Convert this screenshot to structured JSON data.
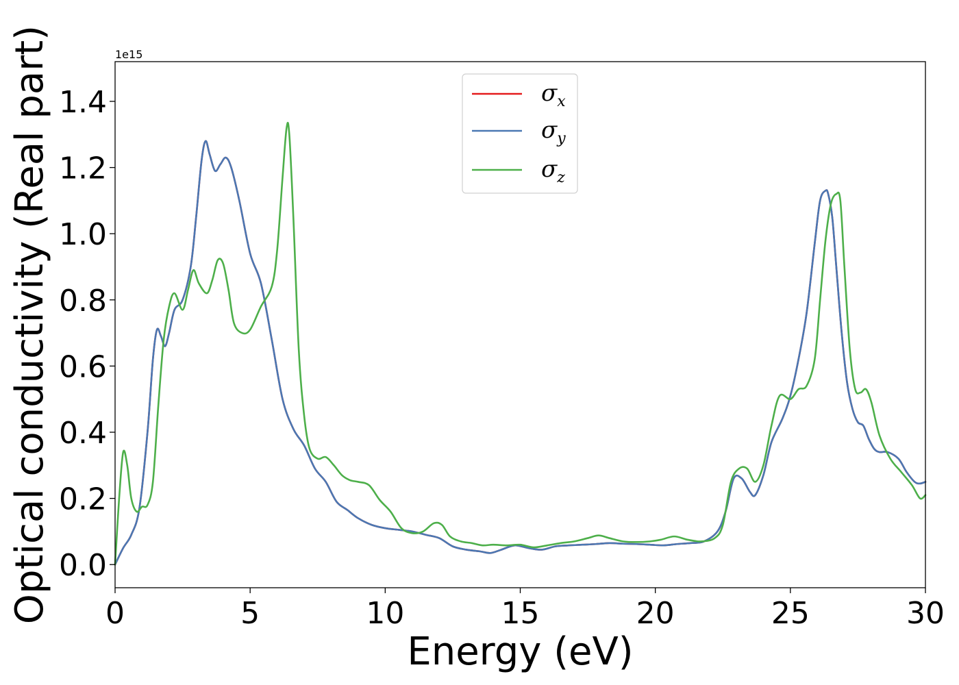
{
  "chart_data": {
    "type": "line",
    "title": "",
    "xlabel": "Energy (eV)",
    "ylabel": "Optical conductivity (Real part)",
    "y_offset_text": "1e15",
    "xlim": [
      0,
      30
    ],
    "ylim": [
      -0.07,
      1.52
    ],
    "x_ticks": [
      0,
      5,
      10,
      15,
      20,
      25,
      30
    ],
    "x_tick_labels": [
      "0",
      "5",
      "10",
      "15",
      "20",
      "25",
      "30"
    ],
    "y_ticks": [
      0.0,
      0.2,
      0.4,
      0.6,
      0.8,
      1.0,
      1.2,
      1.4
    ],
    "y_tick_labels": [
      "0.0",
      "0.2",
      "0.4",
      "0.6",
      "0.8",
      "1.0",
      "1.2",
      "1.4"
    ],
    "grid": false,
    "legend_position": "top-center",
    "series": [
      {
        "name": "σx",
        "symbol": "σ",
        "subscript": "x",
        "color": "#e41a1c",
        "x": [
          0,
          0.3,
          0.6,
          0.9,
          1.2,
          1.4,
          1.55,
          1.7,
          1.85,
          2.0,
          2.2,
          2.5,
          2.8,
          3.0,
          3.2,
          3.35,
          3.5,
          3.7,
          3.9,
          4.1,
          4.3,
          4.6,
          5.0,
          5.4,
          5.8,
          6.2,
          6.6,
          7.0,
          7.4,
          7.8,
          8.2,
          8.6,
          9.0,
          9.5,
          10.0,
          10.5,
          11.0,
          11.5,
          12.0,
          12.5,
          13.0,
          13.5,
          13.9,
          14.3,
          14.8,
          15.3,
          15.8,
          16.3,
          16.8,
          17.3,
          17.8,
          18.3,
          18.8,
          19.3,
          19.8,
          20.3,
          20.8,
          21.3,
          21.8,
          22.3,
          22.6,
          22.9,
          23.2,
          23.5,
          23.7,
          24.0,
          24.3,
          24.7,
          25.0,
          25.3,
          25.6,
          25.9,
          26.1,
          26.3,
          26.4,
          26.55,
          26.7,
          26.9,
          27.1,
          27.3,
          27.5,
          27.7,
          27.9,
          28.1,
          28.3,
          28.6,
          29.0,
          29.3,
          29.6,
          29.8,
          30.0
        ],
        "y": [
          0.0,
          0.05,
          0.09,
          0.17,
          0.4,
          0.62,
          0.71,
          0.69,
          0.66,
          0.7,
          0.77,
          0.8,
          0.9,
          1.05,
          1.22,
          1.28,
          1.24,
          1.19,
          1.21,
          1.23,
          1.2,
          1.1,
          0.94,
          0.85,
          0.68,
          0.5,
          0.41,
          0.36,
          0.29,
          0.25,
          0.19,
          0.165,
          0.14,
          0.12,
          0.11,
          0.105,
          0.1,
          0.09,
          0.08,
          0.055,
          0.045,
          0.04,
          0.035,
          0.045,
          0.058,
          0.05,
          0.045,
          0.055,
          0.058,
          0.06,
          0.062,
          0.065,
          0.063,
          0.062,
          0.06,
          0.058,
          0.062,
          0.065,
          0.07,
          0.1,
          0.16,
          0.26,
          0.26,
          0.22,
          0.21,
          0.27,
          0.37,
          0.44,
          0.51,
          0.62,
          0.76,
          0.97,
          1.1,
          1.13,
          1.12,
          1.05,
          0.9,
          0.7,
          0.55,
          0.47,
          0.43,
          0.42,
          0.38,
          0.35,
          0.34,
          0.34,
          0.32,
          0.28,
          0.25,
          0.245,
          0.25
        ]
      },
      {
        "name": "σy",
        "symbol": "σ",
        "subscript": "y",
        "color": "#4a78b3",
        "x": [
          0,
          0.3,
          0.6,
          0.9,
          1.2,
          1.4,
          1.55,
          1.7,
          1.85,
          2.0,
          2.2,
          2.5,
          2.8,
          3.0,
          3.2,
          3.35,
          3.5,
          3.7,
          3.9,
          4.1,
          4.3,
          4.6,
          5.0,
          5.4,
          5.8,
          6.2,
          6.6,
          7.0,
          7.4,
          7.8,
          8.2,
          8.6,
          9.0,
          9.5,
          10.0,
          10.5,
          11.0,
          11.5,
          12.0,
          12.5,
          13.0,
          13.5,
          13.9,
          14.3,
          14.8,
          15.3,
          15.8,
          16.3,
          16.8,
          17.3,
          17.8,
          18.3,
          18.8,
          19.3,
          19.8,
          20.3,
          20.8,
          21.3,
          21.8,
          22.3,
          22.6,
          22.9,
          23.2,
          23.5,
          23.7,
          24.0,
          24.3,
          24.7,
          25.0,
          25.3,
          25.6,
          25.9,
          26.1,
          26.3,
          26.4,
          26.55,
          26.7,
          26.9,
          27.1,
          27.3,
          27.5,
          27.7,
          27.9,
          28.1,
          28.3,
          28.6,
          29.0,
          29.3,
          29.6,
          29.8,
          30.0
        ],
        "y": [
          0.0,
          0.05,
          0.09,
          0.17,
          0.4,
          0.62,
          0.71,
          0.69,
          0.66,
          0.7,
          0.77,
          0.8,
          0.9,
          1.05,
          1.22,
          1.28,
          1.24,
          1.19,
          1.21,
          1.23,
          1.2,
          1.1,
          0.94,
          0.85,
          0.68,
          0.5,
          0.41,
          0.36,
          0.29,
          0.25,
          0.19,
          0.165,
          0.14,
          0.12,
          0.11,
          0.105,
          0.1,
          0.09,
          0.08,
          0.055,
          0.045,
          0.04,
          0.035,
          0.045,
          0.058,
          0.05,
          0.045,
          0.055,
          0.058,
          0.06,
          0.062,
          0.065,
          0.063,
          0.062,
          0.06,
          0.058,
          0.062,
          0.065,
          0.07,
          0.1,
          0.16,
          0.26,
          0.26,
          0.22,
          0.21,
          0.27,
          0.37,
          0.44,
          0.51,
          0.62,
          0.76,
          0.97,
          1.1,
          1.13,
          1.12,
          1.05,
          0.9,
          0.7,
          0.55,
          0.47,
          0.43,
          0.42,
          0.38,
          0.35,
          0.34,
          0.34,
          0.32,
          0.28,
          0.25,
          0.245,
          0.25
        ]
      },
      {
        "name": "σz",
        "symbol": "σ",
        "subscript": "z",
        "color": "#4daf4a",
        "x": [
          0,
          0.15,
          0.3,
          0.45,
          0.6,
          0.8,
          1.0,
          1.2,
          1.4,
          1.6,
          1.8,
          2.0,
          2.2,
          2.5,
          2.7,
          2.9,
          3.1,
          3.4,
          3.6,
          3.8,
          4.0,
          4.2,
          4.4,
          4.7,
          5.0,
          5.4,
          5.8,
          6.0,
          6.2,
          6.35,
          6.45,
          6.6,
          6.8,
          7.0,
          7.2,
          7.5,
          7.8,
          8.1,
          8.4,
          8.7,
          9.0,
          9.4,
          9.8,
          10.2,
          10.6,
          11.0,
          11.4,
          11.8,
          12.1,
          12.4,
          12.8,
          13.2,
          13.6,
          14.0,
          14.5,
          15.0,
          15.5,
          16.0,
          16.5,
          17.0,
          17.5,
          17.9,
          18.3,
          18.8,
          19.3,
          19.8,
          20.2,
          20.7,
          21.2,
          21.7,
          22.2,
          22.5,
          22.8,
          23.1,
          23.4,
          23.7,
          24.0,
          24.3,
          24.6,
          25.0,
          25.3,
          25.6,
          25.9,
          26.1,
          26.3,
          26.5,
          26.7,
          26.85,
          27.0,
          27.2,
          27.4,
          27.6,
          27.8,
          28.0,
          28.3,
          28.7,
          29.1,
          29.5,
          29.8,
          30.0
        ],
        "y": [
          0.0,
          0.2,
          0.34,
          0.3,
          0.2,
          0.16,
          0.175,
          0.18,
          0.25,
          0.48,
          0.68,
          0.78,
          0.82,
          0.77,
          0.83,
          0.89,
          0.85,
          0.82,
          0.86,
          0.92,
          0.91,
          0.83,
          0.73,
          0.7,
          0.71,
          0.78,
          0.84,
          0.95,
          1.17,
          1.32,
          1.3,
          1.05,
          0.65,
          0.45,
          0.35,
          0.32,
          0.325,
          0.3,
          0.27,
          0.255,
          0.25,
          0.24,
          0.195,
          0.16,
          0.11,
          0.095,
          0.1,
          0.125,
          0.12,
          0.085,
          0.07,
          0.065,
          0.058,
          0.06,
          0.058,
          0.06,
          0.052,
          0.058,
          0.065,
          0.07,
          0.08,
          0.088,
          0.08,
          0.07,
          0.068,
          0.07,
          0.075,
          0.085,
          0.075,
          0.07,
          0.08,
          0.12,
          0.25,
          0.29,
          0.29,
          0.25,
          0.3,
          0.42,
          0.51,
          0.5,
          0.53,
          0.54,
          0.62,
          0.8,
          0.98,
          1.09,
          1.12,
          1.1,
          0.9,
          0.65,
          0.53,
          0.52,
          0.53,
          0.49,
          0.39,
          0.32,
          0.28,
          0.24,
          0.2,
          0.21
        ]
      }
    ]
  }
}
